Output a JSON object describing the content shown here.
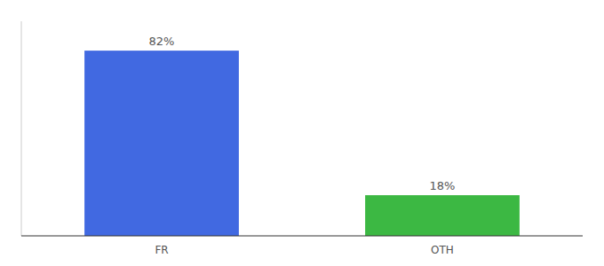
{
  "chart_data": {
    "type": "bar",
    "categories": [
      "FR",
      "OTH"
    ],
    "values": [
      82,
      18
    ],
    "value_labels": [
      "82%",
      "18%"
    ],
    "colors": [
      "#4169E1",
      "#3CB843"
    ],
    "ylim": [
      0,
      95
    ],
    "yticks": [],
    "data_labels": true,
    "tick_labels": "x"
  }
}
